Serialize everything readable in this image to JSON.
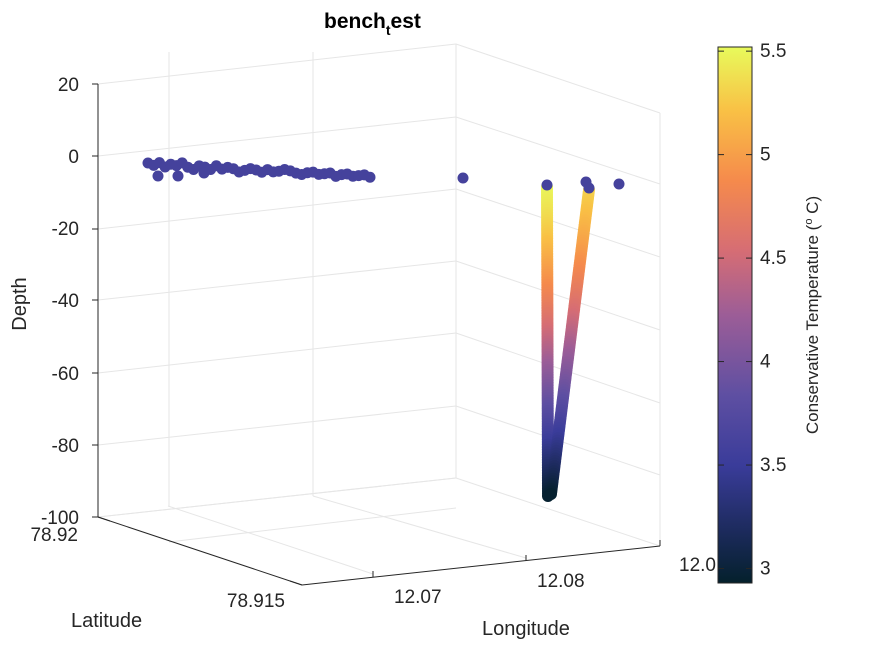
{
  "chart_data": {
    "type": "scatter",
    "title_main": "bench",
    "title_sub": "t",
    "title_rest": "est",
    "xlabel": "Longitude",
    "ylabel": "Latitude",
    "zlabel": "Depth",
    "colorbar_label": "Conservative Temperature (",
    "colorbar_sup": "o",
    "colorbar_label_end": " C)",
    "colormap": "thermal",
    "clim": [
      2.93,
      5.52
    ],
    "colorbar_ticks": [
      "3",
      "3.5",
      "4",
      "4.5",
      "5",
      "5.5"
    ],
    "colorbar_tick_values": [
      3,
      3.5,
      4,
      4.5,
      5,
      5.5
    ],
    "zlim": [
      -100,
      20
    ],
    "z_ticks": [
      "20",
      "0",
      "-20",
      "-40",
      "-60",
      "-80",
      "-100"
    ],
    "lon_ticks": [
      "12.07",
      "12.08",
      "12.0"
    ],
    "lat_ticks": [
      "78.92",
      "78.915"
    ],
    "grid": true,
    "surface_points": 40,
    "profiles": [
      {
        "name": "",
        "depth_top": -8,
        "depth_bottom": -95,
        "temp_top": 5.5,
        "temp_bottom": 2.95
      },
      {
        "name": "",
        "depth_top": -8,
        "depth_bottom": -95,
        "temp_top": 5.3,
        "temp_bottom": 2.95
      }
    ]
  }
}
